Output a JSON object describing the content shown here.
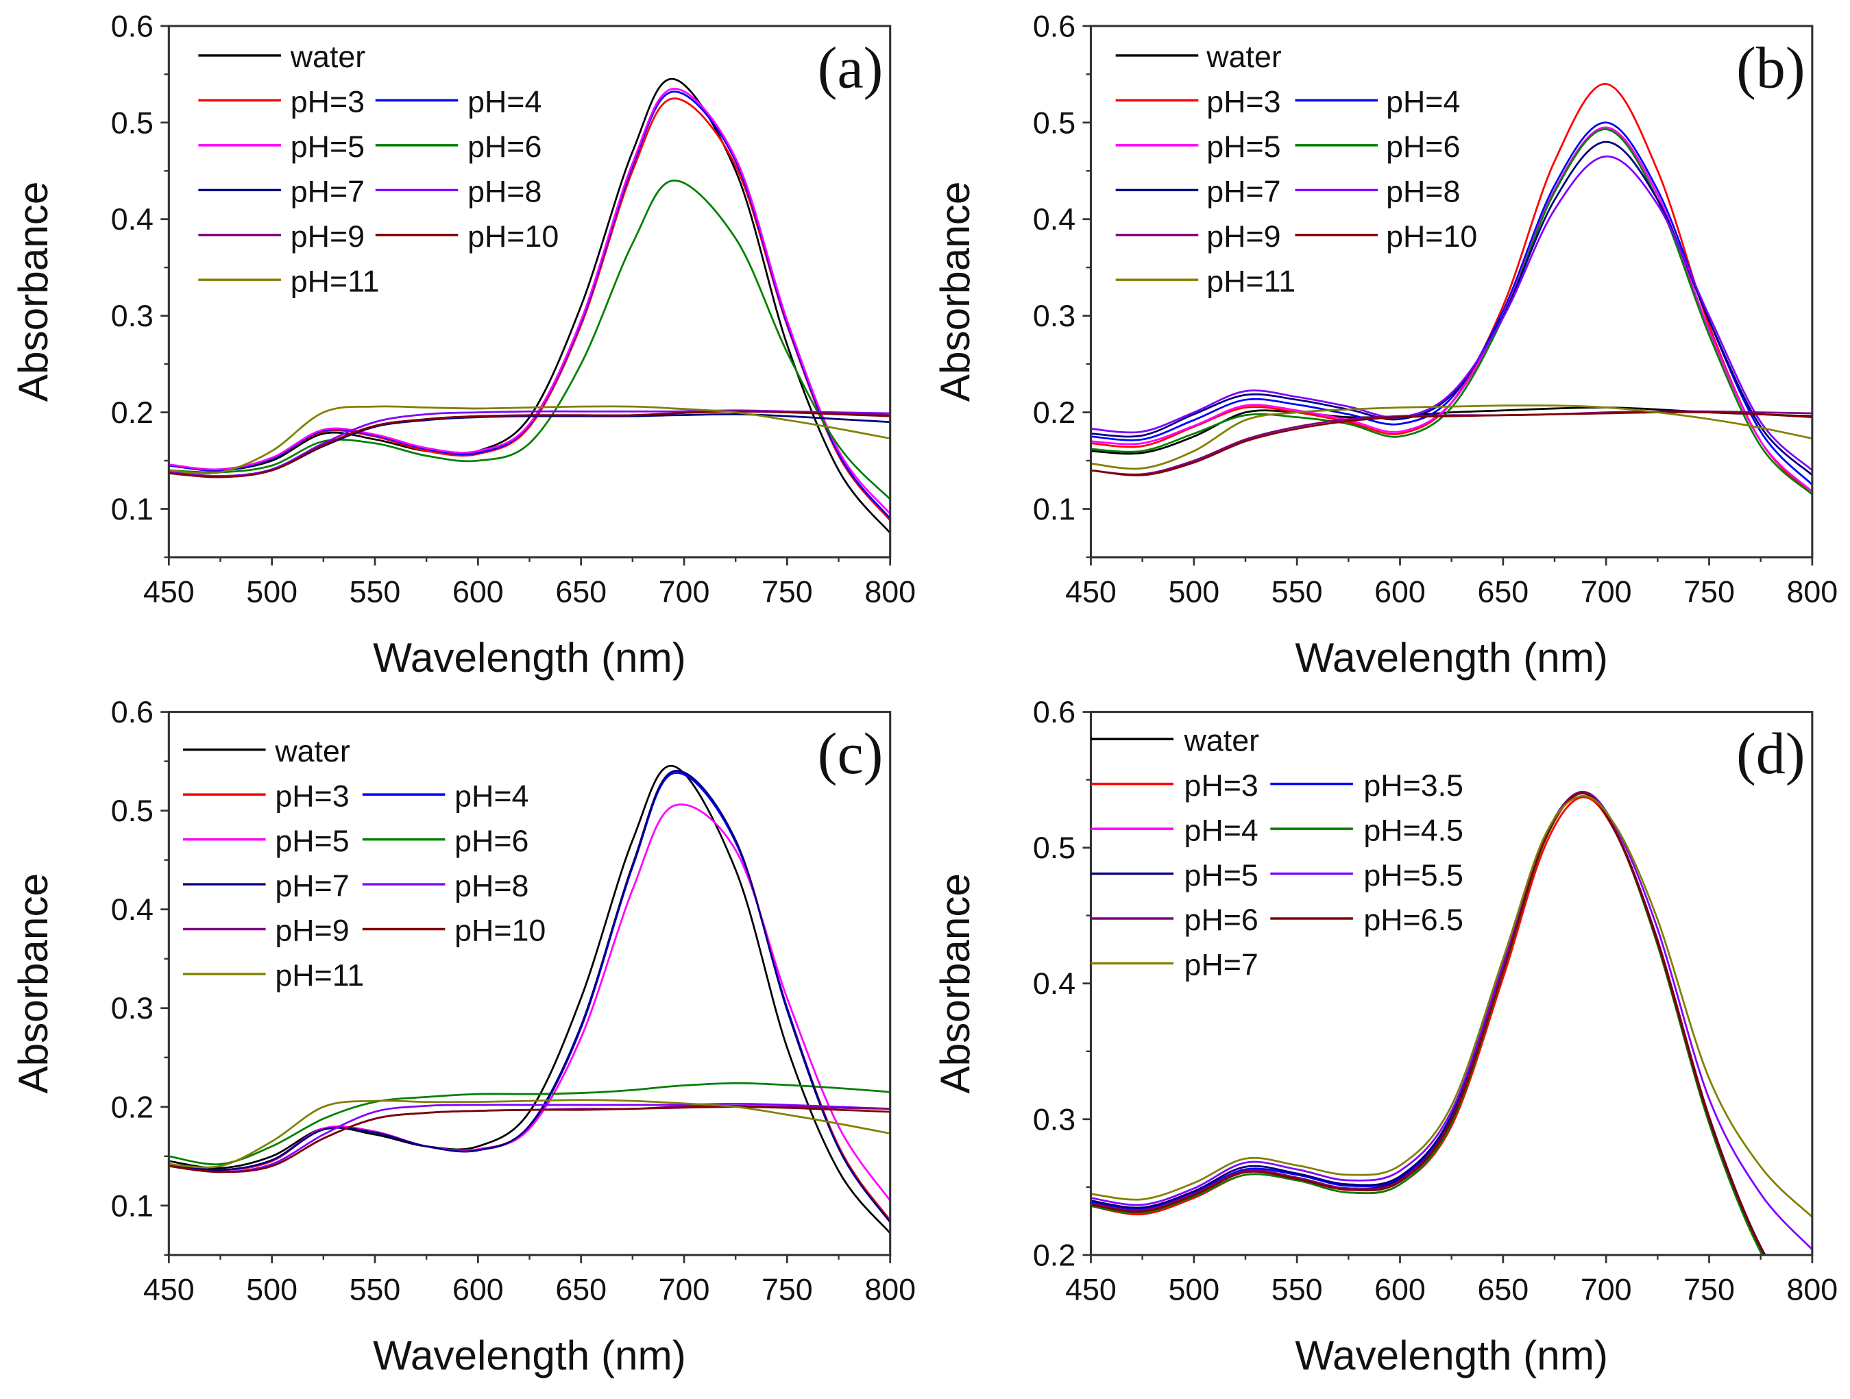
{
  "chart_data": [
    {
      "type": "line",
      "panel_label": "(a)",
      "xlabel": "Wavelength (nm)",
      "ylabel": "Absorbance",
      "xlim": [
        450,
        800
      ],
      "ylim": [
        0.05,
        0.6
      ],
      "xticks": [
        "450",
        "500",
        "550",
        "600",
        "650",
        "700",
        "750",
        "800"
      ],
      "yticks": [
        "0.1",
        "0.2",
        "0.3",
        "0.4",
        "0.5",
        "0.6"
      ],
      "legend_position": "top-left",
      "x": [
        450,
        475,
        500,
        525,
        550,
        575,
        600,
        625,
        650,
        675,
        695,
        725,
        750,
        775,
        800
      ],
      "series": [
        {
          "name": "water",
          "color": "#000000",
          "y": [
            0.145,
            0.14,
            0.15,
            0.178,
            0.172,
            0.16,
            0.16,
            0.195,
            0.31,
            0.47,
            0.545,
            0.45,
            0.27,
            0.14,
            0.075
          ]
        },
        {
          "name": "pH=3",
          "color": "#ff0000",
          "y": [
            0.145,
            0.14,
            0.152,
            0.18,
            0.175,
            0.16,
            0.157,
            0.185,
            0.29,
            0.45,
            0.525,
            0.455,
            0.29,
            0.155,
            0.088
          ]
        },
        {
          "name": "pH=4",
          "color": "#0000ff",
          "y": [
            0.145,
            0.14,
            0.152,
            0.181,
            0.176,
            0.162,
            0.158,
            0.187,
            0.293,
            0.455,
            0.532,
            0.46,
            0.292,
            0.157,
            0.09
          ]
        },
        {
          "name": "pH=5",
          "color": "#ff00ff",
          "y": [
            0.146,
            0.141,
            0.153,
            0.182,
            0.177,
            0.163,
            0.16,
            0.188,
            0.295,
            0.458,
            0.535,
            0.463,
            0.295,
            0.16,
            0.095
          ]
        },
        {
          "name": "pH=6",
          "color": "#008000",
          "y": [
            0.14,
            0.138,
            0.145,
            0.17,
            0.168,
            0.155,
            0.15,
            0.168,
            0.25,
            0.375,
            0.44,
            0.38,
            0.262,
            0.165,
            0.11
          ]
        },
        {
          "name": "pH=7",
          "color": "#000080",
          "y": [
            0.138,
            0.134,
            0.14,
            0.165,
            0.185,
            0.192,
            0.195,
            0.196,
            0.196,
            0.196,
            0.197,
            0.198,
            0.196,
            0.193,
            0.19
          ]
        },
        {
          "name": "pH=8",
          "color": "#8000ff",
          "y": [
            0.138,
            0.134,
            0.141,
            0.168,
            0.19,
            0.198,
            0.2,
            0.201,
            0.201,
            0.201,
            0.201,
            0.202,
            0.201,
            0.2,
            0.199
          ]
        },
        {
          "name": "pH=9",
          "color": "#800080",
          "y": [
            0.137,
            0.133,
            0.14,
            0.166,
            0.186,
            0.193,
            0.196,
            0.197,
            0.197,
            0.197,
            0.199,
            0.201,
            0.2,
            0.199,
            0.197
          ]
        },
        {
          "name": "pH=10",
          "color": "#800000",
          "y": [
            0.137,
            0.133,
            0.14,
            0.166,
            0.186,
            0.193,
            0.196,
            0.197,
            0.197,
            0.197,
            0.199,
            0.201,
            0.2,
            0.198,
            0.196
          ]
        },
        {
          "name": "pH=11",
          "color": "#808000",
          "y": [
            0.14,
            0.138,
            0.16,
            0.2,
            0.206,
            0.205,
            0.204,
            0.205,
            0.206,
            0.206,
            0.204,
            0.2,
            0.192,
            0.183,
            0.173
          ]
        }
      ]
    },
    {
      "type": "line",
      "panel_label": "(b)",
      "xlabel": "Wavelength (nm)",
      "ylabel": "Absorbance",
      "xlim": [
        450,
        800
      ],
      "ylim": [
        0.05,
        0.6
      ],
      "xticks": [
        "450",
        "500",
        "550",
        "600",
        "650",
        "700",
        "750",
        "800"
      ],
      "yticks": [
        "0.1",
        "0.2",
        "0.3",
        "0.4",
        "0.5",
        "0.6"
      ],
      "legend_position": "top-left",
      "x": [
        450,
        475,
        500,
        525,
        550,
        575,
        600,
        625,
        650,
        675,
        700,
        725,
        750,
        775,
        800
      ],
      "series": [
        {
          "name": "water",
          "color": "#000000",
          "y": [
            0.16,
            0.158,
            0.175,
            0.2,
            0.2,
            0.195,
            0.196,
            0.2,
            0.202,
            0.204,
            0.205,
            0.203,
            0.2,
            0.198,
            0.196
          ]
        },
        {
          "name": "pH=3",
          "color": "#ff0000",
          "y": [
            0.168,
            0.165,
            0.185,
            0.205,
            0.2,
            0.19,
            0.178,
            0.21,
            0.31,
            0.46,
            0.54,
            0.45,
            0.29,
            0.17,
            0.115
          ]
        },
        {
          "name": "pH=4",
          "color": "#0000ff",
          "y": [
            0.175,
            0.172,
            0.192,
            0.213,
            0.208,
            0.198,
            0.188,
            0.215,
            0.305,
            0.435,
            0.5,
            0.43,
            0.295,
            0.18,
            0.125
          ]
        },
        {
          "name": "pH=5",
          "color": "#ff00ff",
          "y": [
            0.17,
            0.168,
            0.186,
            0.207,
            0.202,
            0.192,
            0.18,
            0.21,
            0.3,
            0.43,
            0.495,
            0.425,
            0.285,
            0.17,
            0.118
          ]
        },
        {
          "name": "pH=6",
          "color": "#008000",
          "y": [
            0.162,
            0.16,
            0.178,
            0.197,
            0.195,
            0.188,
            0.175,
            0.205,
            0.298,
            0.428,
            0.493,
            0.42,
            0.28,
            0.165,
            0.115
          ]
        },
        {
          "name": "pH=7",
          "color": "#000080",
          "y": [
            0.178,
            0.176,
            0.198,
            0.218,
            0.213,
            0.203,
            0.193,
            0.218,
            0.3,
            0.42,
            0.48,
            0.42,
            0.295,
            0.185,
            0.135
          ]
        },
        {
          "name": "pH=8",
          "color": "#8000ff",
          "y": [
            0.183,
            0.18,
            0.2,
            0.222,
            0.216,
            0.206,
            0.195,
            0.22,
            0.298,
            0.41,
            0.465,
            0.415,
            0.3,
            0.19,
            0.14
          ]
        },
        {
          "name": "pH=9",
          "color": "#800080",
          "y": [
            0.14,
            0.136,
            0.15,
            0.172,
            0.185,
            0.193,
            0.196,
            0.197,
            0.197,
            0.198,
            0.2,
            0.201,
            0.201,
            0.2,
            0.199
          ]
        },
        {
          "name": "pH=10",
          "color": "#800000",
          "y": [
            0.14,
            0.135,
            0.148,
            0.17,
            0.183,
            0.191,
            0.195,
            0.196,
            0.197,
            0.198,
            0.199,
            0.2,
            0.2,
            0.198,
            0.195
          ]
        },
        {
          "name": "pH=11",
          "color": "#808000",
          "y": [
            0.147,
            0.142,
            0.16,
            0.192,
            0.2,
            0.203,
            0.205,
            0.206,
            0.207,
            0.207,
            0.205,
            0.2,
            0.193,
            0.184,
            0.173
          ]
        }
      ]
    },
    {
      "type": "line",
      "panel_label": "(c)",
      "xlabel": "Wavelength (nm)",
      "ylabel": "Absorbance",
      "xlim": [
        450,
        800
      ],
      "ylim": [
        0.05,
        0.6
      ],
      "xticks": [
        "450",
        "500",
        "550",
        "600",
        "650",
        "700",
        "750",
        "800"
      ],
      "yticks": [
        "0.1",
        "0.2",
        "0.3",
        "0.4",
        "0.5",
        "0.6"
      ],
      "legend_position": "top-left",
      "x": [
        450,
        475,
        500,
        525,
        550,
        575,
        600,
        625,
        650,
        675,
        695,
        725,
        750,
        775,
        800
      ],
      "series": [
        {
          "name": "water",
          "color": "#000000",
          "y": [
            0.145,
            0.138,
            0.15,
            0.178,
            0.172,
            0.16,
            0.16,
            0.195,
            0.31,
            0.47,
            0.545,
            0.44,
            0.26,
            0.135,
            0.072
          ]
        },
        {
          "name": "pH=3",
          "color": "#ff0000",
          "y": [
            0.142,
            0.136,
            0.145,
            0.178,
            0.175,
            0.16,
            0.157,
            0.18,
            0.28,
            0.445,
            0.54,
            0.47,
            0.3,
            0.16,
            0.085
          ]
        },
        {
          "name": "pH=4",
          "color": "#0000ff",
          "y": [
            0.142,
            0.136,
            0.146,
            0.177,
            0.174,
            0.16,
            0.156,
            0.18,
            0.28,
            0.443,
            0.538,
            0.468,
            0.3,
            0.158,
            0.083
          ]
        },
        {
          "name": "pH=5",
          "color": "#ff00ff",
          "y": [
            0.142,
            0.136,
            0.146,
            0.178,
            0.175,
            0.16,
            0.157,
            0.178,
            0.27,
            0.42,
            0.505,
            0.46,
            0.31,
            0.18,
            0.105
          ]
        },
        {
          "name": "pH=6",
          "color": "#008000",
          "y": [
            0.15,
            0.142,
            0.16,
            0.188,
            0.205,
            0.21,
            0.213,
            0.213,
            0.214,
            0.217,
            0.221,
            0.224,
            0.222,
            0.219,
            0.215
          ]
        },
        {
          "name": "pH=7",
          "color": "#000080",
          "y": [
            0.142,
            0.136,
            0.146,
            0.177,
            0.174,
            0.16,
            0.156,
            0.181,
            0.282,
            0.445,
            0.54,
            0.47,
            0.298,
            0.158,
            0.083
          ]
        },
        {
          "name": "pH=8",
          "color": "#8000ff",
          "y": [
            0.14,
            0.134,
            0.142,
            0.172,
            0.195,
            0.201,
            0.202,
            0.202,
            0.202,
            0.202,
            0.202,
            0.203,
            0.202,
            0.2,
            0.198
          ]
        },
        {
          "name": "pH=9",
          "color": "#800080",
          "y": [
            0.14,
            0.134,
            0.14,
            0.168,
            0.188,
            0.194,
            0.196,
            0.197,
            0.198,
            0.198,
            0.2,
            0.201,
            0.2,
            0.199,
            0.198
          ]
        },
        {
          "name": "pH=10",
          "color": "#800000",
          "y": [
            0.14,
            0.134,
            0.14,
            0.168,
            0.188,
            0.194,
            0.196,
            0.197,
            0.197,
            0.198,
            0.199,
            0.2,
            0.199,
            0.197,
            0.195
          ]
        },
        {
          "name": "pH=11",
          "color": "#808000",
          "y": [
            0.142,
            0.14,
            0.165,
            0.2,
            0.206,
            0.205,
            0.205,
            0.206,
            0.207,
            0.206,
            0.204,
            0.2,
            0.192,
            0.183,
            0.173
          ]
        }
      ]
    },
    {
      "type": "line",
      "panel_label": "(d)",
      "xlabel": "Wavelength (nm)",
      "ylabel": "Absorbance",
      "xlim": [
        450,
        800
      ],
      "ylim": [
        0.2,
        0.6
      ],
      "xticks": [
        "450",
        "500",
        "550",
        "600",
        "650",
        "700",
        "750",
        "800"
      ],
      "yticks": [
        "0.2",
        "0.3",
        "0.4",
        "0.5",
        "0.6"
      ],
      "legend_position": "top-left",
      "x": [
        450,
        475,
        500,
        525,
        550,
        575,
        600,
        625,
        650,
        670,
        688,
        705,
        725,
        750,
        775,
        800
      ],
      "series": [
        {
          "name": "water",
          "color": "#000000",
          "y": [
            0.238,
            0.233,
            0.245,
            0.262,
            0.257,
            0.249,
            0.256,
            0.301,
            0.412,
            0.506,
            0.54,
            0.51,
            0.43,
            0.3,
            0.205,
            0.15
          ]
        },
        {
          "name": "pH=3",
          "color": "#ff0000",
          "y": [
            0.236,
            0.23,
            0.242,
            0.259,
            0.255,
            0.246,
            0.252,
            0.295,
            0.404,
            0.5,
            0.537,
            0.51,
            0.432,
            0.302,
            0.206,
            0.15
          ]
        },
        {
          "name": "pH=3.5",
          "color": "#0000ff",
          "y": [
            0.239,
            0.234,
            0.246,
            0.263,
            0.259,
            0.251,
            0.257,
            0.301,
            0.41,
            0.505,
            0.54,
            0.51,
            0.43,
            0.301,
            0.205,
            0.15
          ]
        },
        {
          "name": "pH=4",
          "color": "#ff00ff",
          "y": [
            0.237,
            0.232,
            0.244,
            0.261,
            0.256,
            0.248,
            0.254,
            0.298,
            0.408,
            0.504,
            0.54,
            0.511,
            0.431,
            0.3,
            0.205,
            0.15
          ]
        },
        {
          "name": "pH=4.5",
          "color": "#008000",
          "y": [
            0.236,
            0.231,
            0.243,
            0.259,
            0.255,
            0.246,
            0.252,
            0.297,
            0.408,
            0.504,
            0.54,
            0.51,
            0.428,
            0.297,
            0.202,
            0.148
          ]
        },
        {
          "name": "pH=5",
          "color": "#000080",
          "y": [
            0.24,
            0.235,
            0.247,
            0.265,
            0.26,
            0.252,
            0.258,
            0.303,
            0.412,
            0.506,
            0.541,
            0.511,
            0.431,
            0.301,
            0.206,
            0.152
          ]
        },
        {
          "name": "pH=5.5",
          "color": "#8000ff",
          "y": [
            0.242,
            0.237,
            0.249,
            0.268,
            0.263,
            0.255,
            0.262,
            0.306,
            0.414,
            0.507,
            0.541,
            0.514,
            0.44,
            0.315,
            0.245,
            0.204
          ]
        },
        {
          "name": "pH=6",
          "color": "#800080",
          "y": [
            0.238,
            0.233,
            0.245,
            0.262,
            0.257,
            0.249,
            0.255,
            0.3,
            0.41,
            0.506,
            0.541,
            0.511,
            0.43,
            0.3,
            0.205,
            0.15
          ]
        },
        {
          "name": "pH=6.5",
          "color": "#800000",
          "y": [
            0.237,
            0.232,
            0.244,
            0.261,
            0.256,
            0.248,
            0.254,
            0.299,
            0.409,
            0.505,
            0.54,
            0.51,
            0.43,
            0.3,
            0.205,
            0.15
          ]
        },
        {
          "name": "pH=7",
          "color": "#808000",
          "y": [
            0.245,
            0.241,
            0.253,
            0.271,
            0.266,
            0.259,
            0.266,
            0.31,
            0.418,
            0.508,
            0.538,
            0.515,
            0.447,
            0.33,
            0.265,
            0.228
          ]
        }
      ]
    }
  ]
}
